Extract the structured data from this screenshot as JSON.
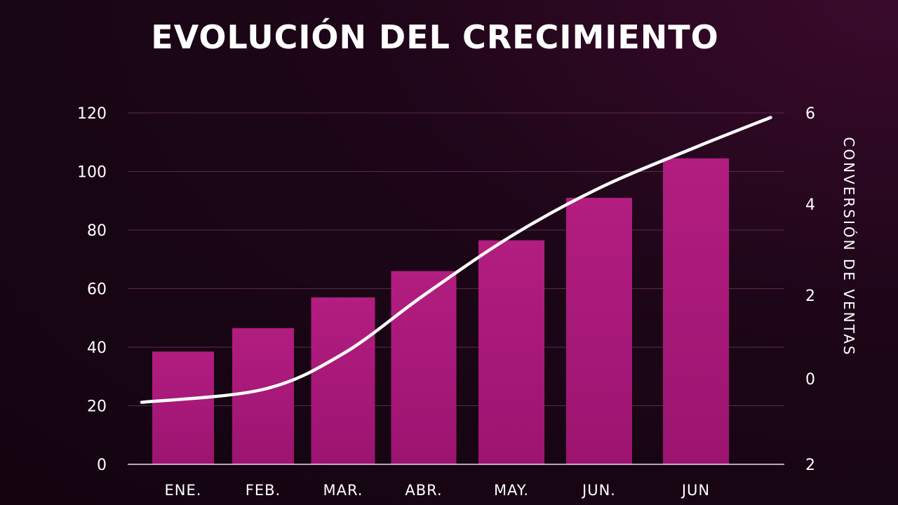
{
  "chart_data": {
    "type": "bar",
    "title": "EVOLUCIÓN DEL CRECIMIENTO",
    "categories": [
      "ENE.",
      "FEB.",
      "MAR.",
      "ABR.",
      "MAY.",
      "JUN.",
      "JUN"
    ],
    "series": [
      {
        "values": [
          38.5,
          46.5,
          57,
          66,
          76.5,
          91,
          104.5
        ],
        "color": "#b01a7c",
        "axis": "left"
      }
    ],
    "line": {
      "x": [
        0,
        1,
        2,
        3,
        4,
        5,
        6,
        6.75
      ],
      "values": [
        -0.55,
        -0.25,
        0.6,
        2.0,
        3.3,
        4.35,
        5.25,
        5.9
      ],
      "color": "#ffffff",
      "axis": "right"
    },
    "left_axis": {
      "ylim": [
        0,
        120
      ],
      "ticks": [
        "0",
        "20",
        "40",
        "60",
        "80",
        "100",
        "120"
      ]
    },
    "right_axis": {
      "label": "CONVERSIÓN DE VENTAS",
      "ticks": [
        {
          "label": "6",
          "value": 6
        },
        {
          "label": "4",
          "value": 4
        },
        {
          "label": "2",
          "value": 2
        },
        {
          "label": "0",
          "value": 0
        },
        {
          "label": "2",
          "value": -2
        }
      ],
      "ylim": [
        -2,
        6
      ]
    },
    "grid": true
  }
}
